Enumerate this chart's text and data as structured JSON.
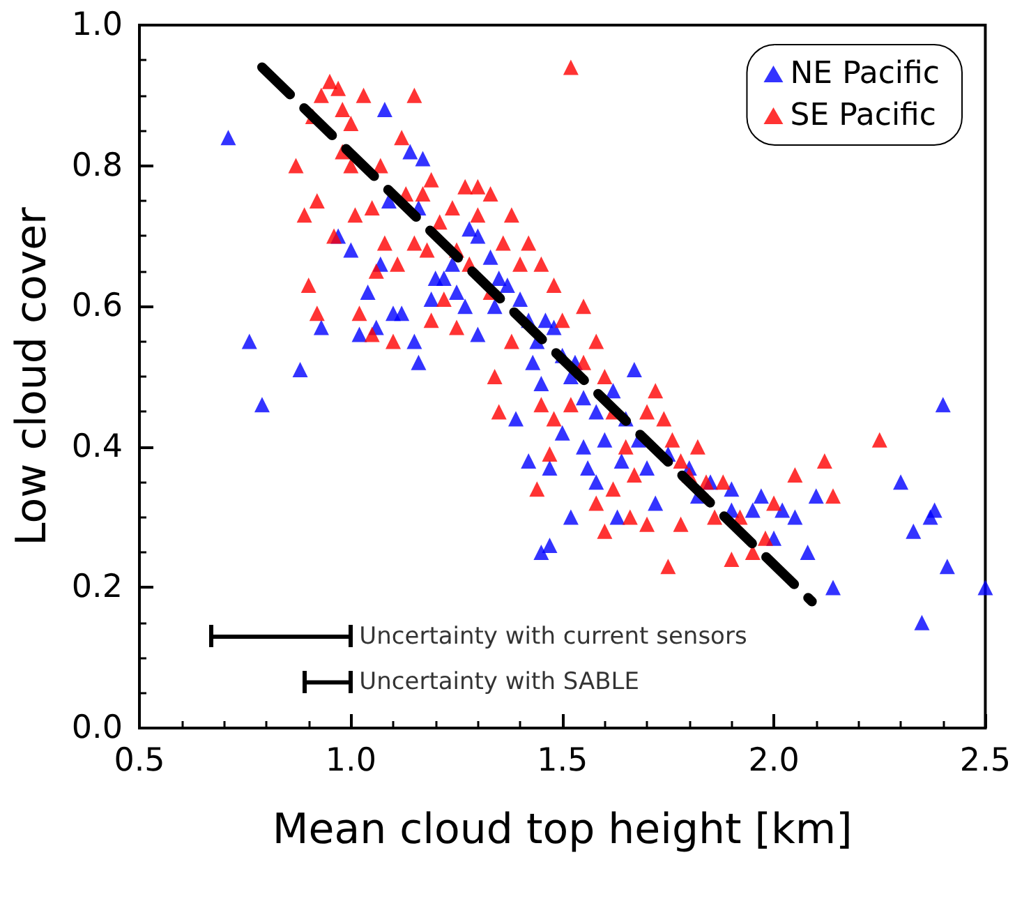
{
  "chart_data": {
    "type": "scatter",
    "xlabel": "Mean cloud top height [km]",
    "ylabel": "Low cloud cover",
    "xlim": [
      0.5,
      2.5
    ],
    "xticks": [
      0.5,
      {
        "value": 1.0,
        "label": "1.0"
      },
      1.5,
      {
        "value": 2.0,
        "label": "2.0"
      },
      2.5
    ],
    "ylim": [
      0.0,
      1.0
    ],
    "yticks": [
      {
        "value": 0,
        "label": "0.0"
      },
      0.2,
      0.4,
      0.6,
      0.8,
      {
        "value": 1.0,
        "label": "1.0"
      }
    ],
    "grid": false,
    "legend": "top right",
    "marker": "triangle",
    "series": [
      {
        "name": "NE Pacific",
        "color": "#0000ff",
        "x": [
          0.71,
          0.76,
          0.79,
          0.88,
          0.93,
          1.02,
          0.97,
          1.0,
          1.08,
          1.09,
          1.14,
          1.17,
          1.16,
          1.07,
          1.04,
          1.06,
          1.12,
          1.15,
          1.16,
          1.19,
          1.22,
          1.25,
          1.27,
          1.24,
          1.3,
          1.33,
          1.28,
          1.35,
          1.37,
          1.4,
          1.42,
          1.44,
          1.46,
          1.48,
          1.43,
          1.45,
          1.5,
          1.52,
          1.55,
          1.5,
          1.47,
          1.45,
          1.47,
          1.52,
          1.55,
          1.58,
          1.6,
          1.62,
          1.58,
          1.63,
          1.65,
          1.68,
          1.7,
          1.72,
          1.75,
          1.8,
          1.82,
          1.85,
          1.9,
          1.95,
          1.97,
          2.02,
          2.05,
          2.0,
          2.08,
          2.14,
          2.1,
          2.3,
          2.33,
          2.37,
          2.38,
          2.4,
          2.41,
          2.35,
          2.5,
          1.39,
          1.42,
          1.56,
          1.64,
          1.67,
          1.9,
          1.53,
          1.3,
          1.34,
          1.2,
          1.1
        ],
        "values": [
          0.84,
          0.55,
          0.46,
          0.51,
          0.57,
          0.56,
          0.7,
          0.68,
          0.88,
          0.75,
          0.82,
          0.81,
          0.74,
          0.66,
          0.62,
          0.57,
          0.59,
          0.55,
          0.52,
          0.61,
          0.64,
          0.62,
          0.6,
          0.66,
          0.7,
          0.67,
          0.71,
          0.64,
          0.63,
          0.61,
          0.58,
          0.55,
          0.58,
          0.57,
          0.52,
          0.49,
          0.53,
          0.5,
          0.47,
          0.42,
          0.37,
          0.25,
          0.26,
          0.3,
          0.4,
          0.45,
          0.41,
          0.48,
          0.35,
          0.3,
          0.44,
          0.41,
          0.37,
          0.32,
          0.39,
          0.37,
          0.33,
          0.35,
          0.34,
          0.31,
          0.33,
          0.31,
          0.3,
          0.27,
          0.25,
          0.2,
          0.33,
          0.35,
          0.28,
          0.3,
          0.31,
          0.46,
          0.23,
          0.15,
          0.2,
          0.44,
          0.38,
          0.37,
          0.38,
          0.51,
          0.31,
          0.52,
          0.56,
          0.6,
          0.64,
          0.59
        ]
      },
      {
        "name": "SE Pacific",
        "color": "#ff0000",
        "x": [
          0.87,
          0.91,
          0.93,
          0.95,
          0.97,
          0.98,
          1.0,
          1.03,
          0.98,
          1.0,
          0.92,
          0.89,
          0.9,
          0.92,
          0.96,
          1.01,
          1.05,
          1.07,
          1.12,
          1.15,
          1.13,
          1.08,
          1.11,
          1.15,
          1.17,
          1.19,
          1.21,
          1.24,
          1.27,
          1.3,
          1.33,
          1.3,
          1.25,
          1.28,
          1.22,
          1.19,
          1.1,
          1.05,
          1.02,
          1.33,
          1.36,
          1.38,
          1.4,
          1.42,
          1.45,
          1.48,
          1.52,
          1.55,
          1.5,
          1.45,
          1.48,
          1.52,
          1.55,
          1.58,
          1.6,
          1.62,
          1.65,
          1.67,
          1.7,
          1.72,
          1.74,
          1.76,
          1.78,
          1.8,
          1.82,
          1.84,
          1.86,
          1.88,
          1.92,
          1.95,
          1.98,
          2.0,
          2.05,
          2.12,
          2.14,
          2.25,
          1.75,
          1.7,
          1.58,
          1.62,
          1.44,
          1.47,
          1.35,
          1.38,
          1.34,
          1.6,
          1.66,
          1.78,
          1.9,
          1.25,
          1.18,
          1.06
        ],
        "values": [
          0.8,
          0.87,
          0.9,
          0.92,
          0.91,
          0.88,
          0.86,
          0.9,
          0.82,
          0.8,
          0.75,
          0.73,
          0.63,
          0.59,
          0.7,
          0.73,
          0.74,
          0.8,
          0.84,
          0.9,
          0.76,
          0.69,
          0.66,
          0.69,
          0.76,
          0.78,
          0.72,
          0.74,
          0.77,
          0.77,
          0.76,
          0.73,
          0.68,
          0.66,
          0.61,
          0.58,
          0.55,
          0.56,
          0.59,
          0.62,
          0.69,
          0.73,
          0.66,
          0.69,
          0.66,
          0.63,
          0.94,
          0.6,
          0.58,
          0.46,
          0.44,
          0.46,
          0.52,
          0.55,
          0.5,
          0.45,
          0.4,
          0.36,
          0.45,
          0.48,
          0.44,
          0.41,
          0.38,
          0.36,
          0.4,
          0.35,
          0.3,
          0.35,
          0.3,
          0.25,
          0.27,
          0.32,
          0.36,
          0.38,
          0.33,
          0.41,
          0.23,
          0.29,
          0.32,
          0.34,
          0.34,
          0.39,
          0.45,
          0.55,
          0.5,
          0.28,
          0.3,
          0.29,
          0.24,
          0.57,
          0.68,
          0.65
        ]
      },
      {
        "type": "line",
        "color": "#000000",
        "line_style": "dashed",
        "marker": "none",
        "x": [
          0.79,
          2.09
        ],
        "values": [
          0.94,
          0.18
        ]
      },
      {
        "type": "line",
        "color": "#000000",
        "line_style": "solid",
        "marker": "none",
        "x": [
          0.67,
          1.0
        ],
        "values": [
          0.13,
          0.13
        ]
      },
      {
        "type": "line",
        "color": "#000000",
        "line_style": "solid",
        "marker": "none",
        "x": [
          0.89,
          1.0
        ],
        "values": [
          0.065,
          0.065
        ]
      }
    ],
    "annotations": [
      {
        "text": "Uncertainty with current sensors",
        "x": 1.0,
        "y": 0.13
      },
      {
        "text": "Uncertainty with SABLE",
        "x": 1.0,
        "y": 0.065
      }
    ]
  }
}
